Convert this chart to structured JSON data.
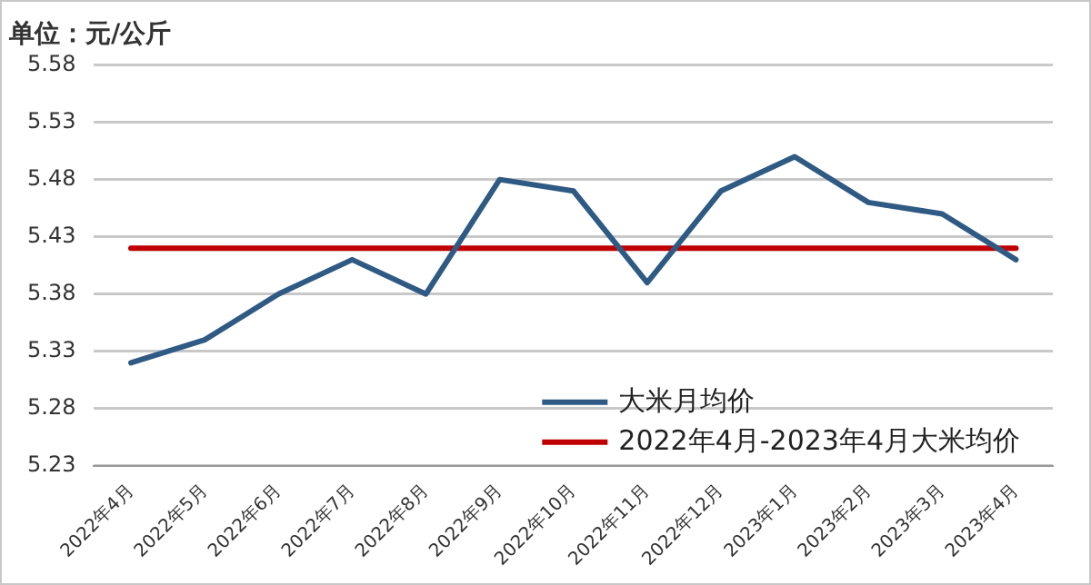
{
  "chart_data": {
    "type": "line",
    "title": "单位：元/公斤",
    "categories": [
      "2022年4月",
      "2022年5月",
      "2022年6月",
      "2022年7月",
      "2022年8月",
      "2022年9月",
      "2022年10月",
      "2022年11月",
      "2022年12月",
      "2023年1月",
      "2023年2月",
      "2023年3月",
      "2023年4月"
    ],
    "series": [
      {
        "name": "大米月均价",
        "color": "#2e5a84",
        "values": [
          5.32,
          5.34,
          5.38,
          5.41,
          5.38,
          5.48,
          5.47,
          5.39,
          5.47,
          5.5,
          5.46,
          5.45,
          5.41
        ]
      },
      {
        "name": "2022年4月-2023年4月大米均价",
        "color": "#c00000",
        "values": [
          5.42,
          5.42,
          5.42,
          5.42,
          5.42,
          5.42,
          5.42,
          5.42,
          5.42,
          5.42,
          5.42,
          5.42,
          5.42
        ]
      }
    ],
    "ylim": [
      5.23,
      5.58
    ],
    "yticks": [
      5.23,
      5.28,
      5.33,
      5.38,
      5.43,
      5.48,
      5.53,
      5.58
    ],
    "grid": "y",
    "legend": "bottom right",
    "marker": "none",
    "line_style": "solid"
  }
}
